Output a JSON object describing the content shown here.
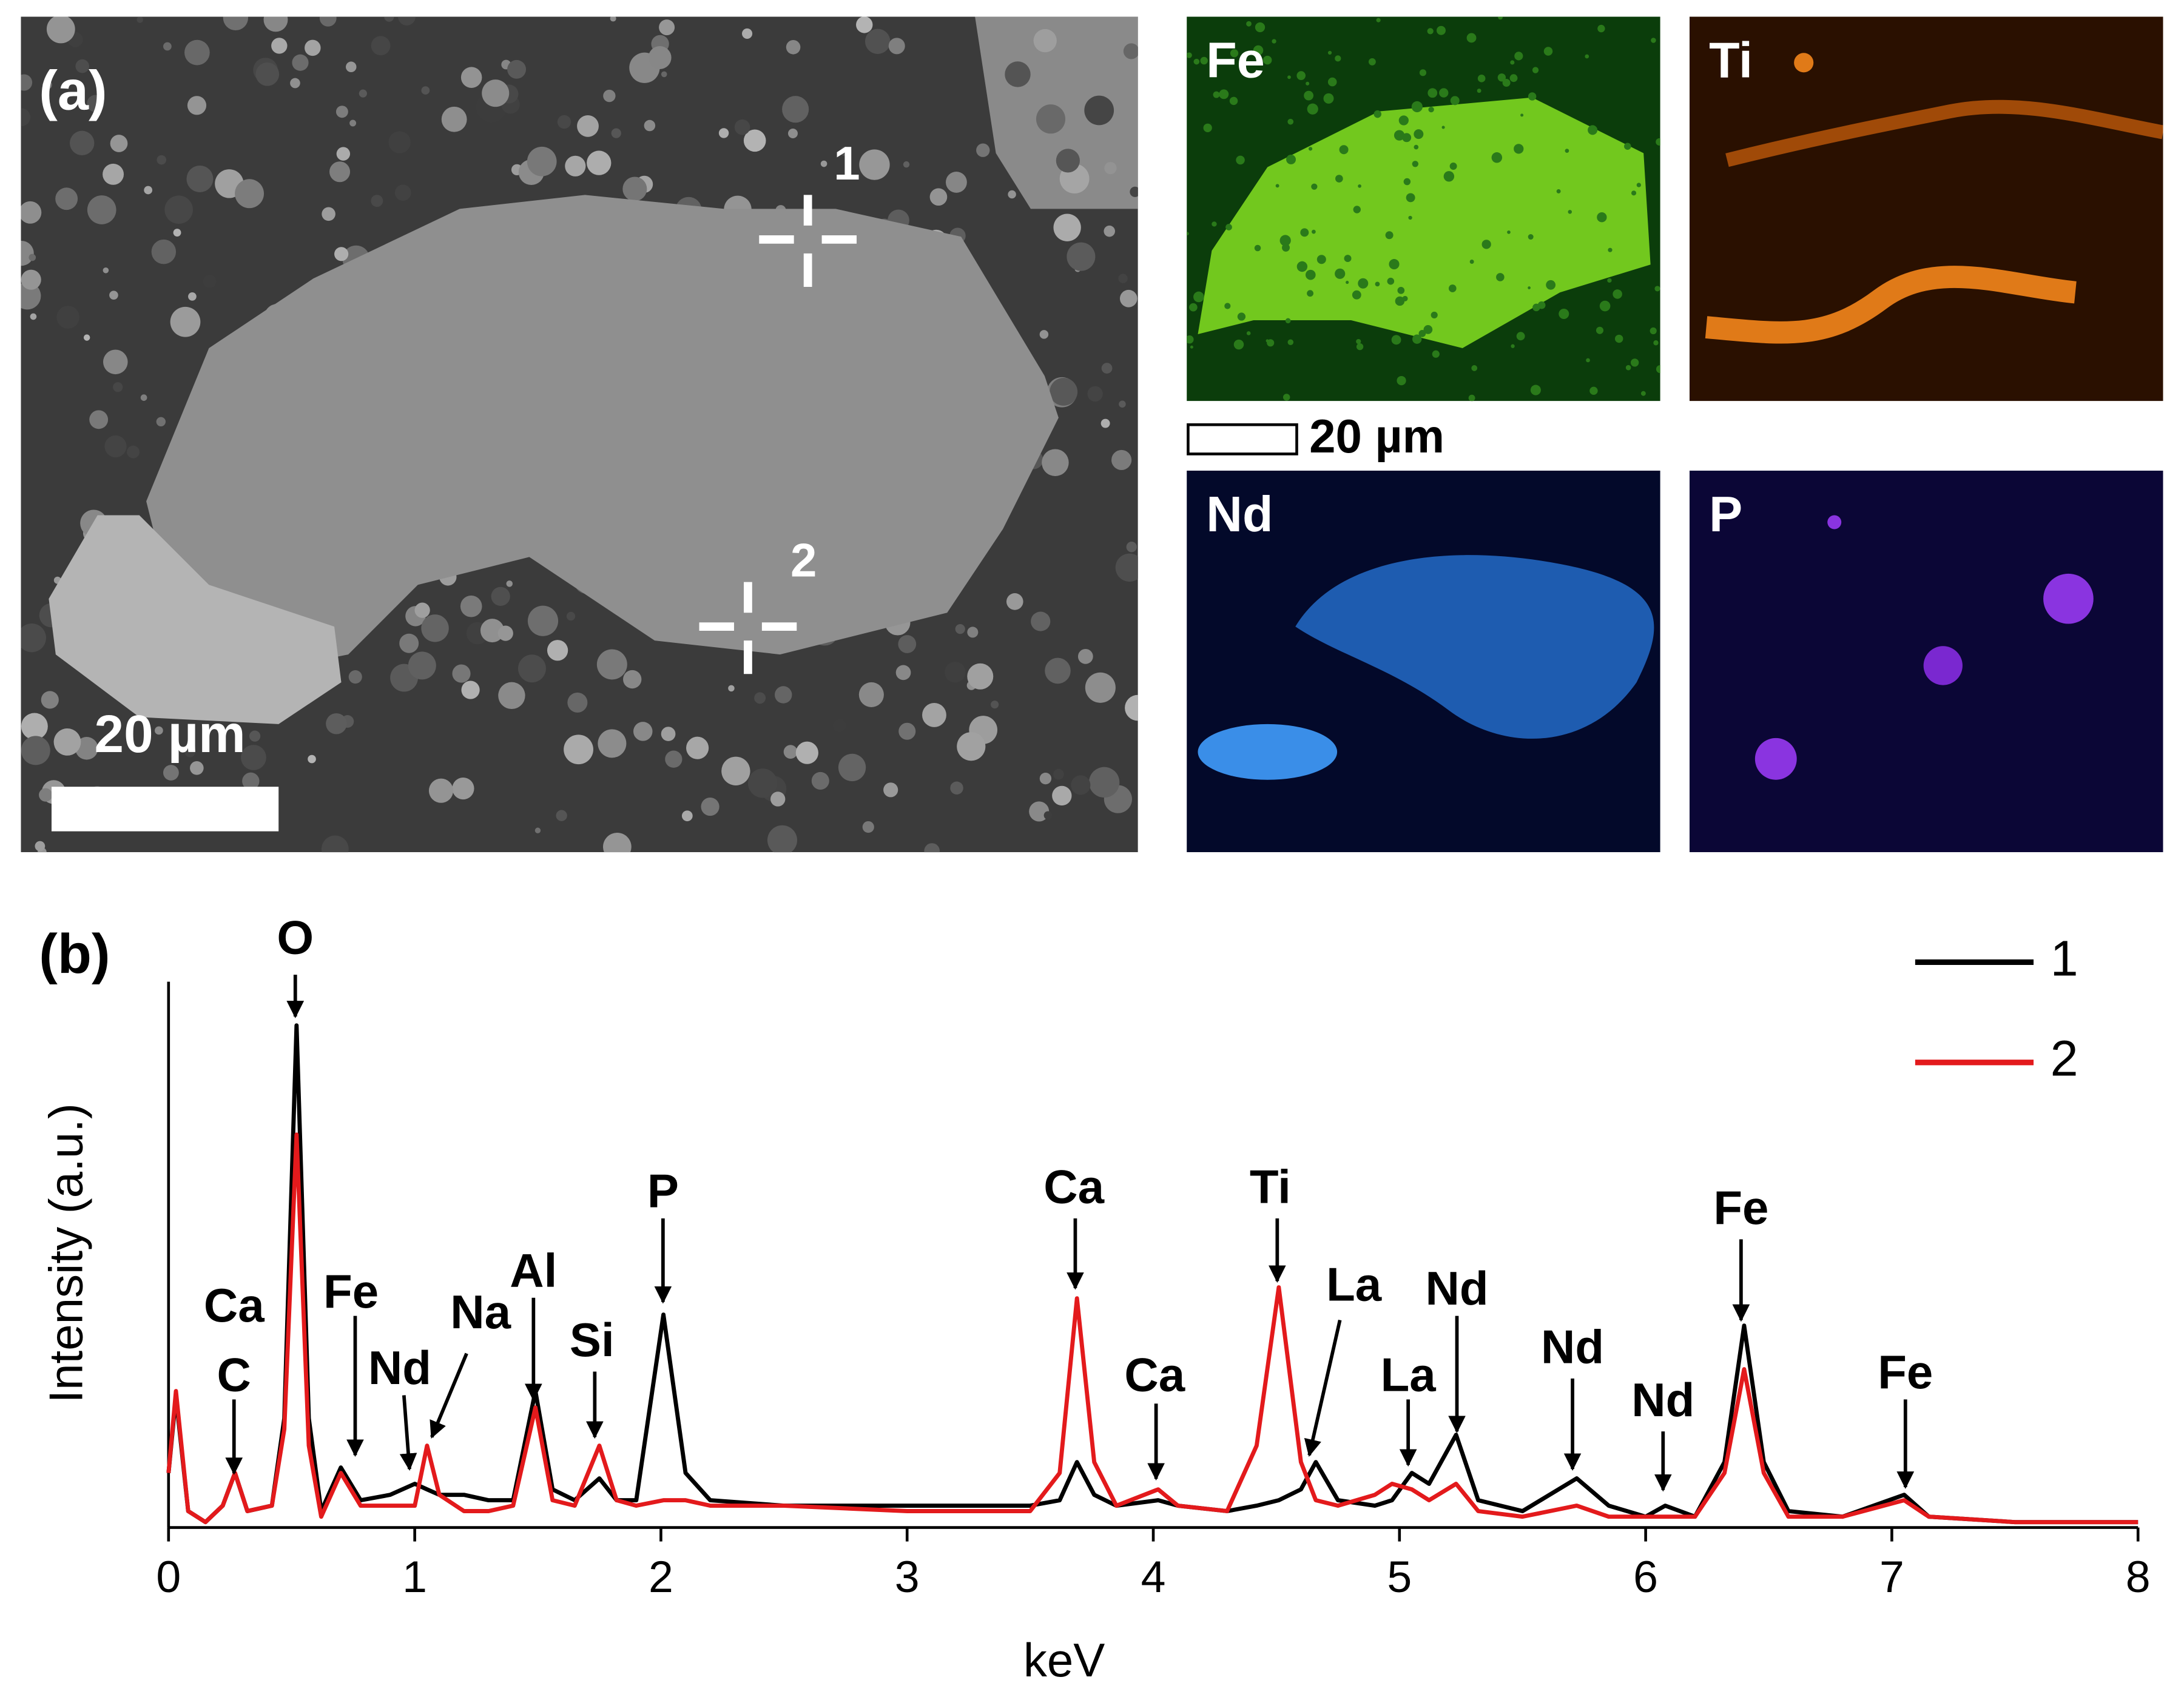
{
  "panel_a": {
    "label": "(a)",
    "points": [
      "1",
      "2"
    ],
    "scale_bar": "20 µm"
  },
  "maps": {
    "scale_bar": "20 µm",
    "panels": [
      "Fe",
      "Ti",
      "Nd",
      "P"
    ]
  },
  "chart_data": {
    "type": "line",
    "panel_label": "(b)",
    "x_label": "keV",
    "y_label": "Intensity (a.u.)",
    "x": [
      0,
      0.03,
      0.08,
      0.15,
      0.22,
      0.27,
      0.32,
      0.42,
      0.47,
      0.52,
      0.57,
      0.62,
      0.7,
      0.78,
      0.9,
      1.0,
      1.05,
      1.1,
      1.2,
      1.3,
      1.4,
      1.49,
      1.56,
      1.65,
      1.75,
      1.82,
      1.9,
      2.01,
      2.1,
      2.2,
      2.5,
      3.0,
      3.5,
      3.62,
      3.69,
      3.76,
      3.85,
      4.02,
      4.1,
      4.3,
      4.42,
      4.51,
      4.6,
      4.66,
      4.75,
      4.9,
      4.97,
      5.05,
      5.12,
      5.23,
      5.32,
      5.5,
      5.72,
      5.85,
      6.0,
      6.08,
      6.2,
      6.32,
      6.4,
      6.48,
      6.58,
      6.8,
      7.05,
      7.15,
      7.5,
      8.0
    ],
    "series": [
      {
        "name": "1",
        "color": "#000000",
        "values": [
          10,
          24,
          3,
          1,
          4,
          10,
          3,
          4,
          20,
          92,
          20,
          3,
          11,
          5,
          6,
          8,
          7,
          6,
          6,
          5,
          5,
          25,
          7,
          5,
          9,
          5,
          5,
          39,
          10,
          5,
          4,
          4,
          4,
          5,
          12,
          6,
          4,
          5,
          4,
          3,
          4,
          5,
          7,
          12,
          5,
          4,
          5,
          10,
          8,
          17,
          5,
          3,
          9,
          4,
          2,
          4,
          2,
          12,
          37,
          12,
          3,
          2,
          6,
          2,
          1,
          1
        ]
      },
      {
        "name": "2",
        "color": "#e31a1c",
        "values": [
          10,
          25,
          3,
          1,
          4,
          10,
          3,
          4,
          18,
          72,
          15,
          2,
          10,
          4,
          4,
          4,
          15,
          6,
          3,
          3,
          4,
          22,
          5,
          4,
          15,
          5,
          4,
          5,
          5,
          4,
          4,
          3,
          3,
          10,
          42,
          12,
          4,
          7,
          4,
          3,
          15,
          44,
          12,
          5,
          4,
          6,
          8,
          7,
          5,
          8,
          3,
          2,
          4,
          2,
          2,
          2,
          2,
          10,
          29,
          10,
          2,
          2,
          5,
          2,
          1,
          1
        ]
      }
    ],
    "xlim": [
      0,
      8
    ],
    "xticks": [
      0,
      1,
      2,
      3,
      4,
      5,
      6,
      7,
      8
    ],
    "ylim": [
      0,
      100
    ],
    "annotations": [
      "Ca",
      "C",
      "O",
      "Fe",
      "Nd",
      "Na",
      "Al",
      "Si",
      "P",
      "Ca",
      "Ca",
      "Ti",
      "La",
      "La",
      "Nd",
      "Nd",
      "Nd",
      "Fe",
      "Fe"
    ]
  }
}
